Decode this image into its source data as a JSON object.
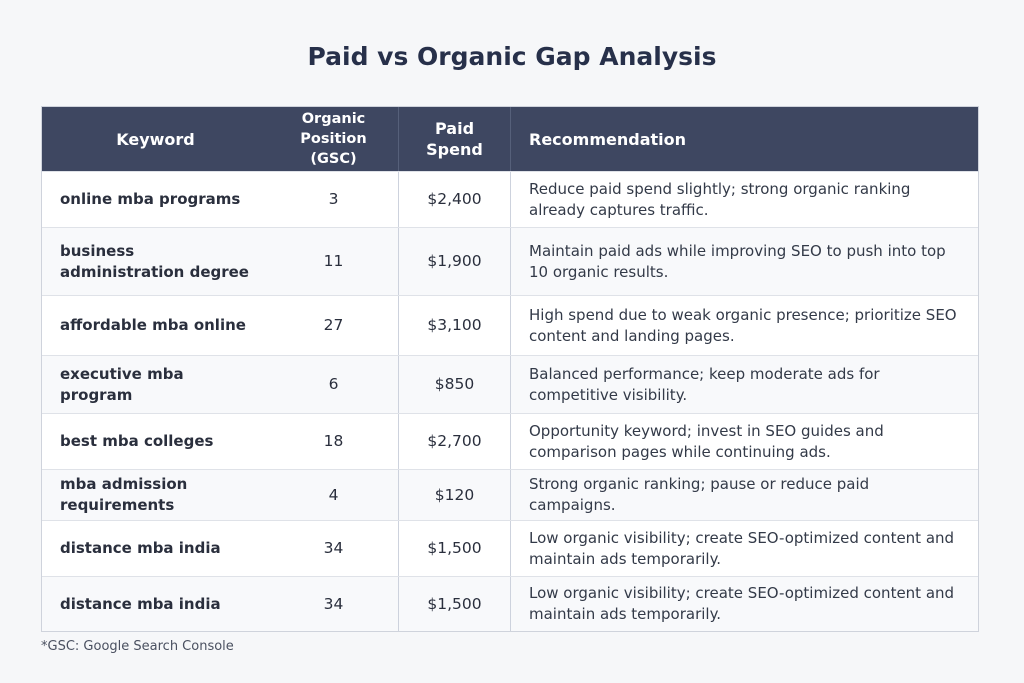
{
  "title": "Paid vs Organic Gap Analysis",
  "table": {
    "headers": [
      "Keyword",
      "Organic Position (GSC)",
      "Paid Spend",
      "Recommendation"
    ],
    "rows": [
      {
        "keyword": "online mba programs",
        "position": "3",
        "spend": "$2,400",
        "rec": "Reduce paid spend slightly; strong organic ranking already captures traffic."
      },
      {
        "keyword": "business administration degree",
        "position": "11",
        "spend": "$1,900",
        "rec": "Maintain paid ads while improving SEO to push into top 10 organic results."
      },
      {
        "keyword": "affordable mba online",
        "position": "27",
        "spend": "$3,100",
        "rec": "High spend due to weak organic presence; prioritize SEO content and landing pages."
      },
      {
        "keyword": "executive mba program",
        "position": "6",
        "spend": "$850",
        "rec": "Balanced performance; keep moderate ads for competitive visibility."
      },
      {
        "keyword": "best mba colleges",
        "position": "18",
        "spend": "$2,700",
        "rec": "Opportunity keyword; invest in SEO guides and comparison pages while continuing ads."
      },
      {
        "keyword": "mba admission requirements",
        "position": "4",
        "spend": "$120",
        "rec": "Strong organic ranking; pause or reduce paid campaigns."
      },
      {
        "keyword": "distance mba india",
        "position": "34",
        "spend": "$1,500",
        "rec": "Low organic visibility; create SEO-optimized content and maintain ads temporarily."
      },
      {
        "keyword": "distance mba india",
        "position": "34",
        "spend": "$1,500",
        "rec": "Low organic visibility; create SEO-optimized content and maintain ads temporarily."
      }
    ]
  },
  "footnote": "*GSC:  Google Search Console",
  "colors": {
    "header_bg": "#3e4761",
    "title": "#27304a"
  }
}
